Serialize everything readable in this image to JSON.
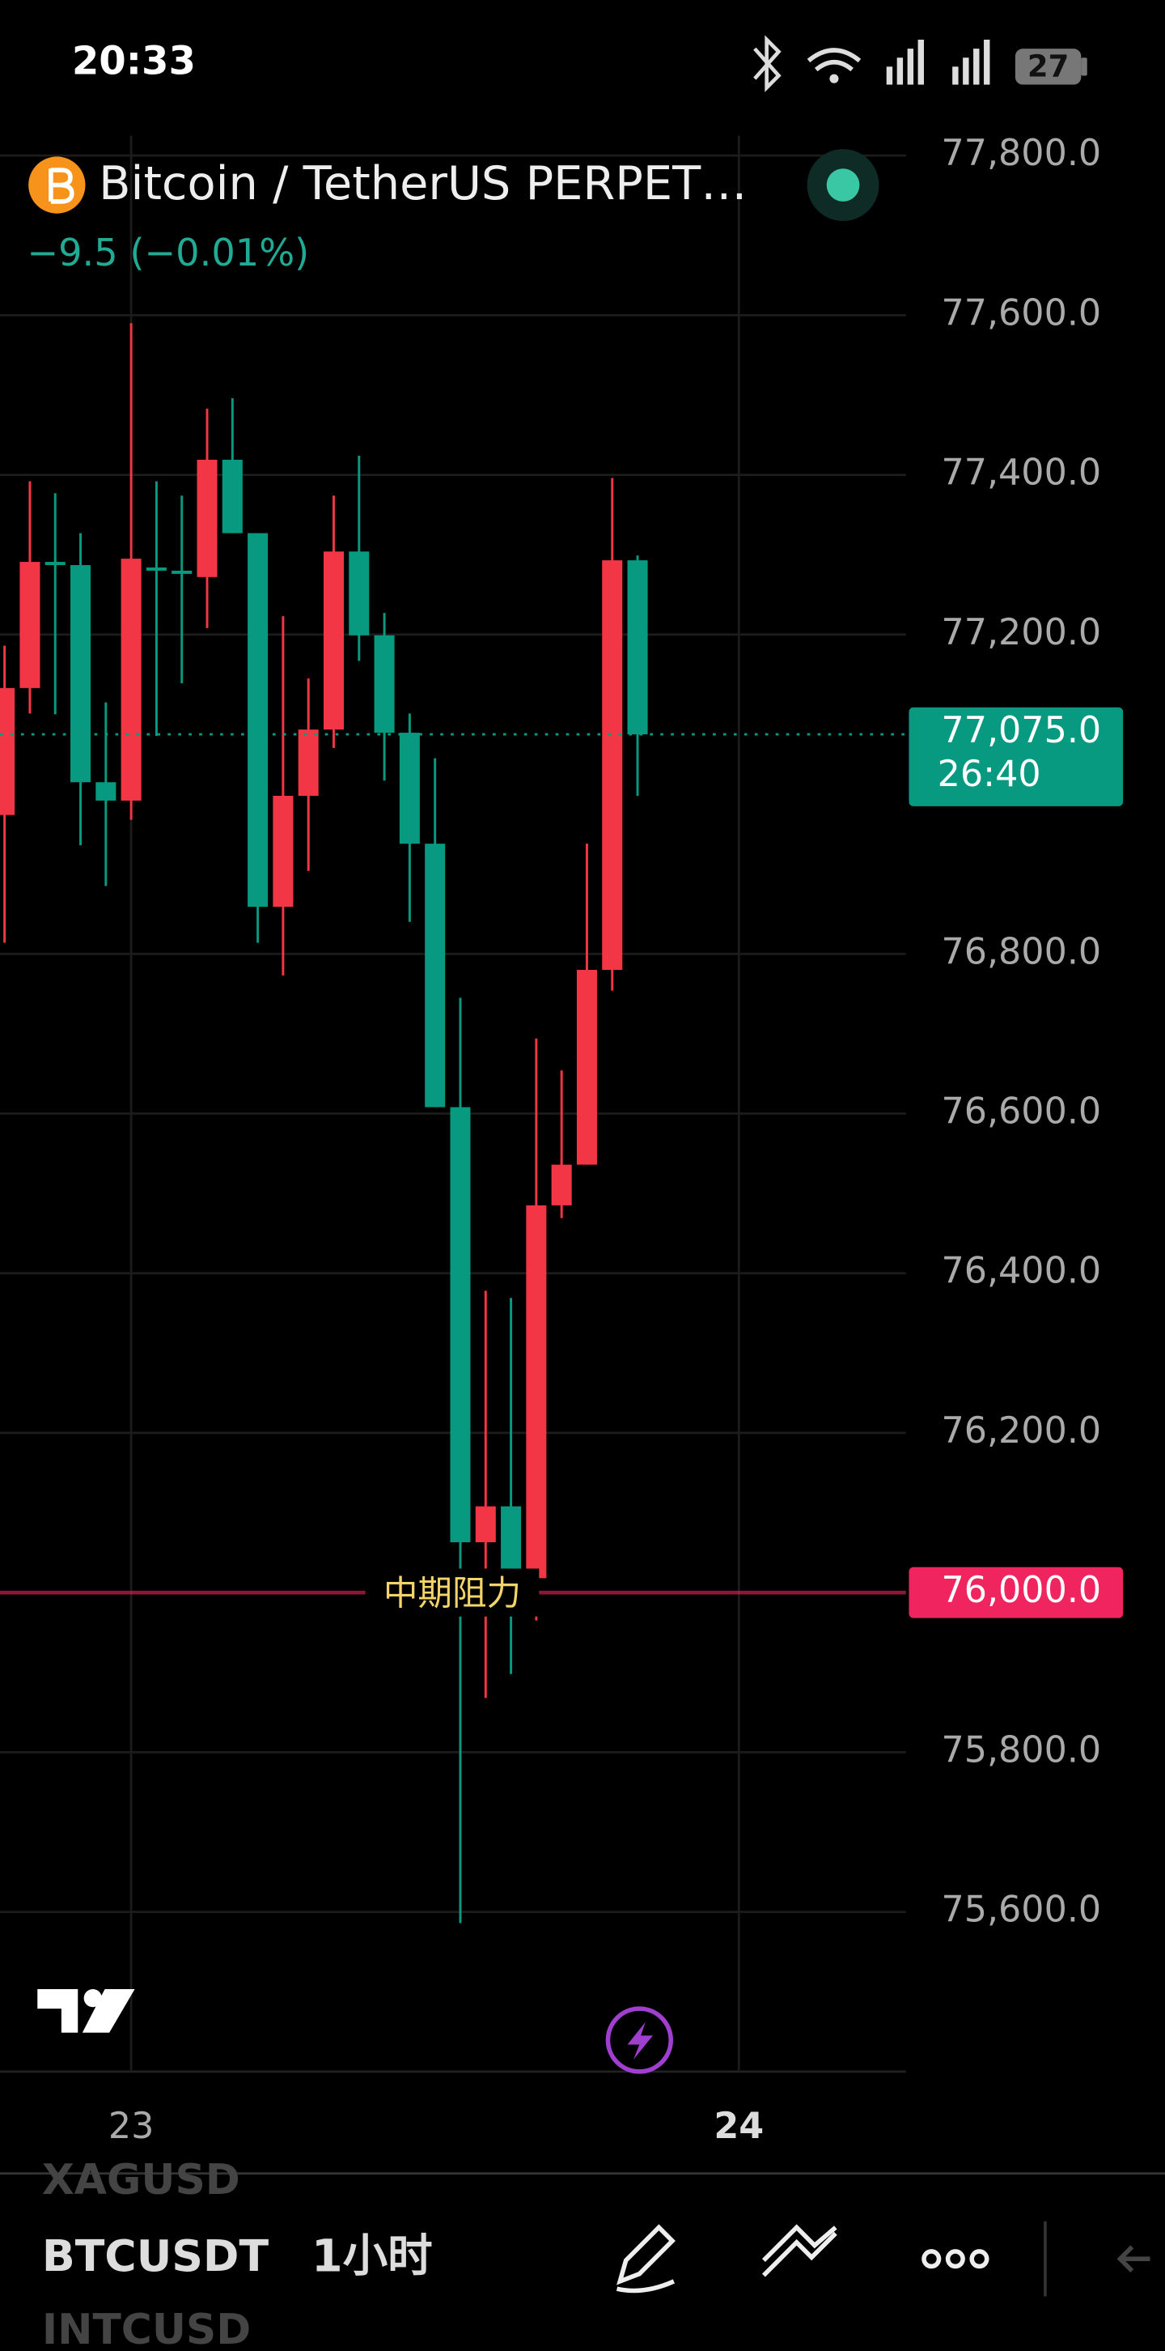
{
  "status_bar": {
    "time": "20:33",
    "battery": "27"
  },
  "chart_data": {
    "type": "candlestick",
    "title": "Bitcoin / TetherUS PERPET…",
    "subtitle": "−9.5 (−0.01%)",
    "open": [
      76974,
      77133,
      77291,
      77287,
      77015,
      76992,
      77284,
      77280,
      77272,
      77419,
      77327,
      76859,
      76998,
      77081,
      77304,
      77199,
      77077,
      76938,
      76608,
      76063,
      76108,
      76018,
      76485,
      76536,
      76780,
      77293
    ],
    "high": [
      77186,
      77392,
      77377,
      77327,
      77115,
      77590,
      77392,
      77374,
      77483,
      77496,
      77327,
      77223,
      77145,
      77374,
      77424,
      77227,
      77101,
      77045,
      76745,
      76378,
      76369,
      76694,
      76654,
      76938,
      77396,
      77299
    ],
    "low": [
      76814,
      77101,
      77100,
      76936,
      76885,
      76968,
      77073,
      77139,
      77208,
      77327,
      76814,
      76773,
      76904,
      77058,
      77167,
      77017,
      76840,
      76608,
      75586,
      75868,
      75898,
      75965,
      76469,
      76536,
      76754,
      76998
    ],
    "close": [
      77133,
      77291,
      77287,
      77015,
      76992,
      77295,
      77280,
      77276,
      77419,
      77327,
      76859,
      76998,
      77081,
      77304,
      77199,
      77077,
      76938,
      76608,
      76063,
      76108,
      76018,
      76485,
      76536,
      76780,
      77293,
      77075
    ],
    "up_color": "#f23645",
    "down_color": "#089981",
    "ylim": [
      75400,
      77825
    ],
    "yticks": [
      {
        "value": 77800,
        "label": "77,800.0"
      },
      {
        "value": 77600,
        "label": "77,600.0"
      },
      {
        "value": 77400,
        "label": "77,400.0"
      },
      {
        "value": 77200,
        "label": "77,200.0"
      },
      {
        "value": 76800,
        "label": "76,800.0"
      },
      {
        "value": 76600,
        "label": "76,600.0"
      },
      {
        "value": 76400,
        "label": "76,400.0"
      },
      {
        "value": 76200,
        "label": "76,200.0"
      },
      {
        "value": 75800,
        "label": "75,800.0"
      },
      {
        "value": 75600,
        "label": "75,600.0"
      }
    ],
    "xlim": [
      -0.18,
      35.6
    ],
    "xticks": [
      {
        "value": 5,
        "label": "23"
      },
      {
        "value": 29,
        "label": "24"
      }
    ],
    "grid": true,
    "current_price": {
      "value": 77075,
      "label": "77,075.0",
      "countdown": "26:40"
    },
    "hline": {
      "value": 76000,
      "label": "76,000.0",
      "text": "中期阻力",
      "color": "#f0245e"
    }
  },
  "toolbar": {
    "symbol_above": "XAGUSD",
    "symbol": "BTCUSDT",
    "interval": "1小时",
    "symbol_below": "INTCUSD"
  }
}
